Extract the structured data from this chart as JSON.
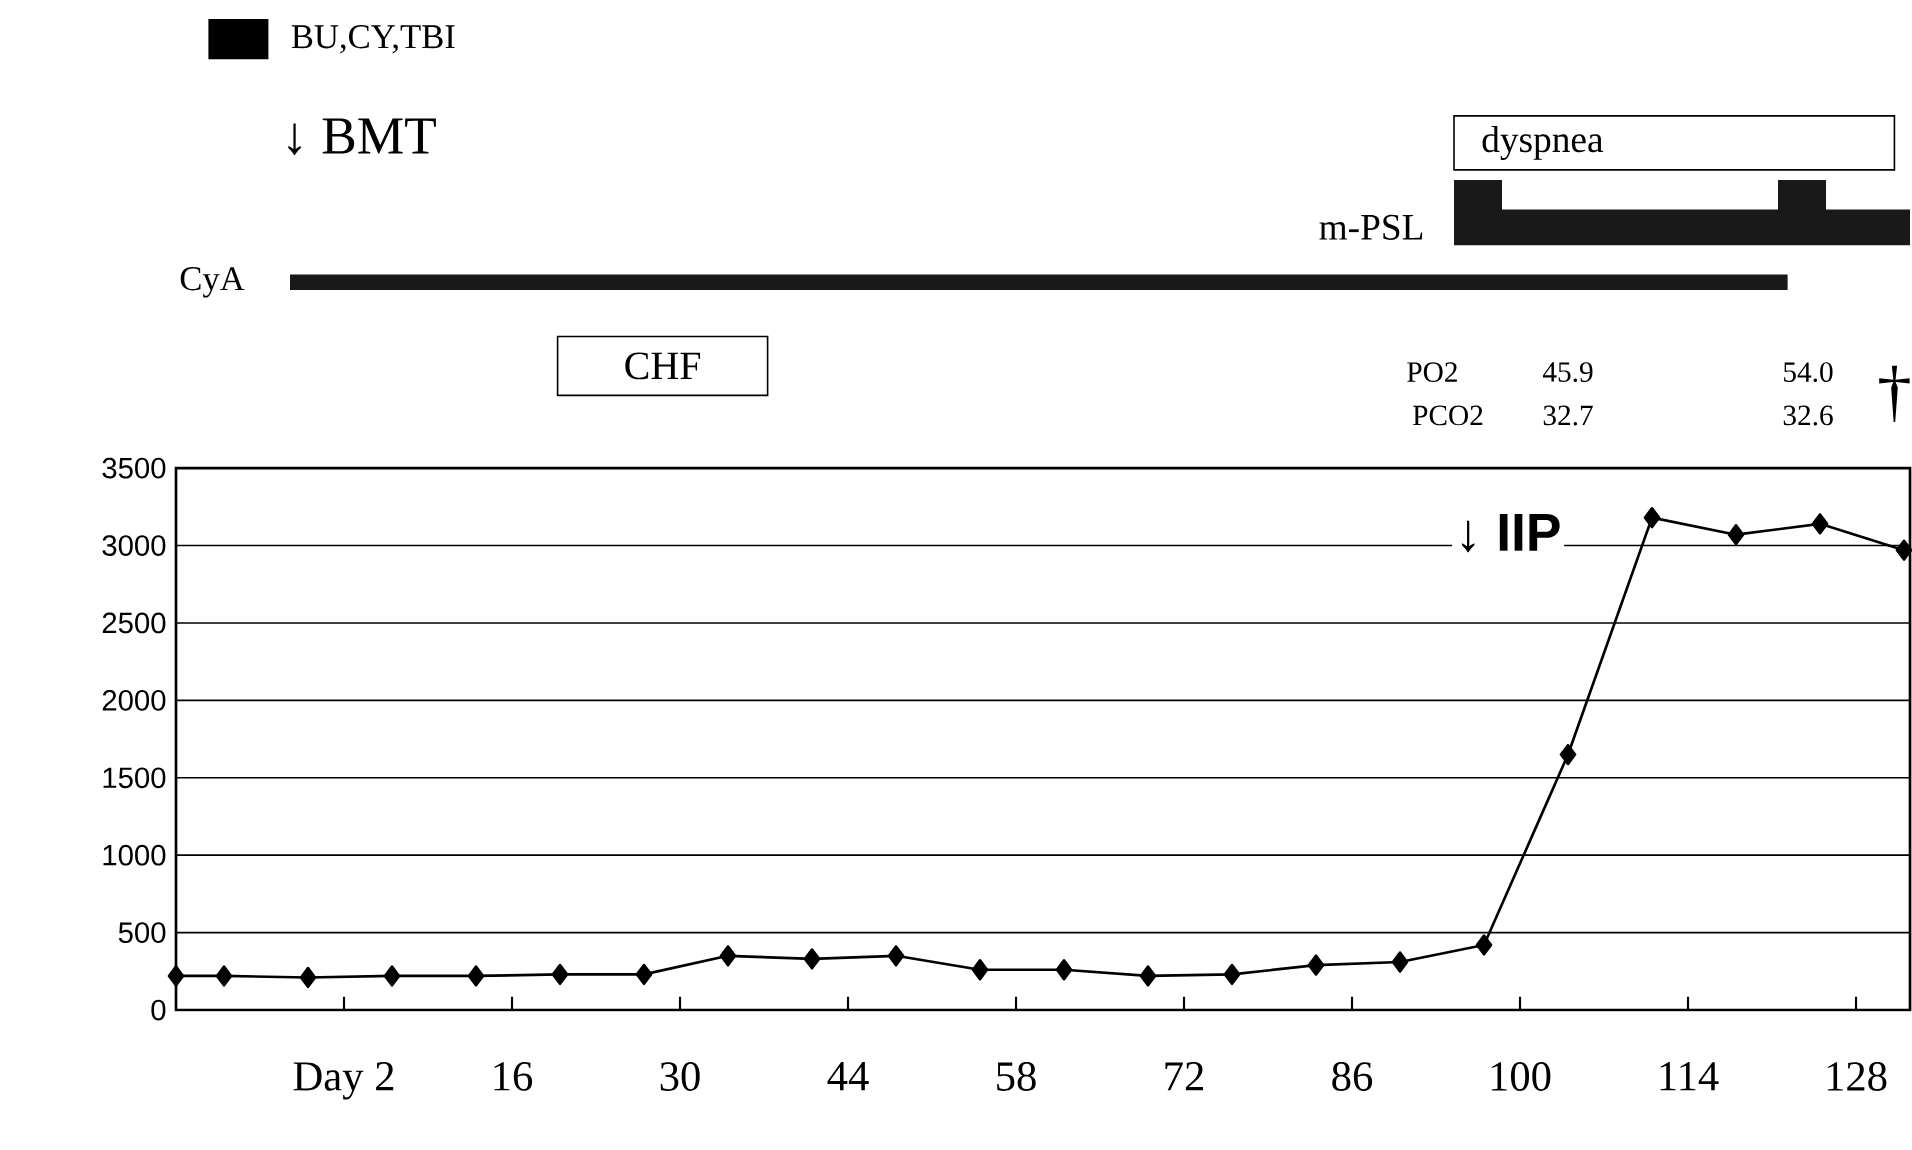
{
  "chart_data": {
    "type": "line",
    "color": "#000000",
    "marker": "diamond",
    "line_style": "solid",
    "grid": "y",
    "x": [
      -12,
      -8,
      -1,
      6,
      13,
      20,
      27,
      34,
      41,
      48,
      55,
      62,
      69,
      76,
      83,
      90,
      97,
      104,
      111,
      118,
      125,
      132
    ],
    "values": [
      220,
      220,
      210,
      220,
      220,
      230,
      230,
      350,
      330,
      350,
      260,
      260,
      220,
      230,
      290,
      310,
      420,
      1650,
      3180,
      3070,
      3140,
      2970
    ],
    "xlim": [
      -12,
      132.5
    ],
    "ylim": [
      0,
      3500
    ],
    "xticks": [
      {
        "value": 2,
        "label": "Day 2"
      },
      16,
      30,
      44,
      58,
      72,
      86,
      100,
      114,
      128
    ],
    "yticks": [
      0,
      500,
      1000,
      1500,
      2000,
      2500,
      3000,
      3500
    ],
    "annotations": [
      "BU,CY,TBI",
      "↓ BMT",
      "dyspnea",
      "m-PSL",
      "CyA",
      "CHF",
      "PO2",
      "45.9",
      "54.0",
      "PCO2",
      "32.7",
      "32.6",
      "†",
      "↓ IIP"
    ]
  }
}
